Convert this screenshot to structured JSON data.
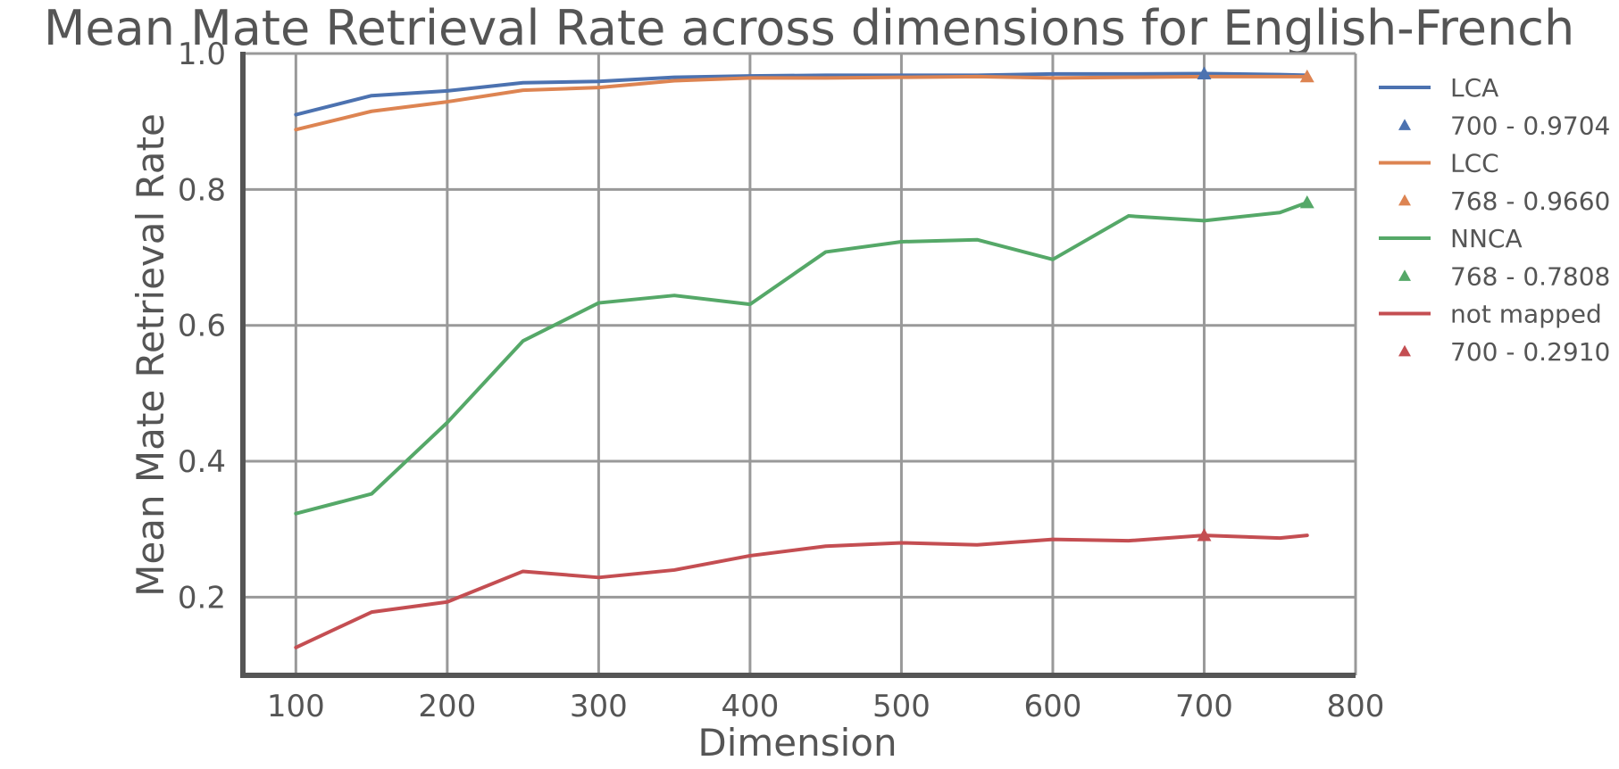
{
  "chart_data": {
    "type": "line",
    "title": "Mean Mate Retrieval Rate across dimensions for English-French",
    "xlabel": "Dimension",
    "ylabel": "Mean Mate Retrieval Rate",
    "xlim": [
      65,
      800
    ],
    "ylim": [
      0.085,
      1.0
    ],
    "xticks": [
      100,
      200,
      300,
      400,
      500,
      600,
      700,
      800
    ],
    "xtick_labels": [
      "100",
      "200",
      "300",
      "400",
      "500",
      "600",
      "700",
      "800"
    ],
    "yticks": [
      0.2,
      0.4,
      0.6,
      0.8,
      1.0
    ],
    "ytick_labels": [
      "0.2",
      "0.4",
      "0.6",
      "0.8",
      "1.0"
    ],
    "grid": true,
    "legend_position": "right",
    "x": [
      100,
      150,
      200,
      250,
      300,
      350,
      400,
      450,
      500,
      550,
      600,
      650,
      700,
      750,
      768
    ],
    "series": [
      {
        "name": "LCA",
        "color": "#4c72b0",
        "values": [
          0.91,
          0.938,
          0.945,
          0.957,
          0.959,
          0.965,
          0.967,
          0.968,
          0.968,
          0.968,
          0.97,
          0.97,
          0.9704,
          0.969,
          0.968
        ],
        "marker": {
          "x": 700,
          "y": 0.9704,
          "label": "700 - 0.9704"
        }
      },
      {
        "name": "LCC",
        "color": "#dd8452",
        "values": [
          0.888,
          0.915,
          0.929,
          0.946,
          0.95,
          0.96,
          0.964,
          0.964,
          0.965,
          0.966,
          0.964,
          0.965,
          0.966,
          0.966,
          0.966
        ],
        "marker": {
          "x": 768,
          "y": 0.966,
          "label": "768 - 0.9660"
        }
      },
      {
        "name": "NNCA",
        "color": "#55a868",
        "values": [
          0.323,
          0.352,
          0.457,
          0.577,
          0.633,
          0.644,
          0.631,
          0.708,
          0.723,
          0.726,
          0.697,
          0.761,
          0.754,
          0.766,
          0.7808
        ],
        "marker": {
          "x": 768,
          "y": 0.7808,
          "label": "768 - 0.7808"
        }
      },
      {
        "name": "not mapped",
        "color": "#c44e52",
        "values": [
          0.126,
          0.178,
          0.193,
          0.238,
          0.229,
          0.24,
          0.261,
          0.275,
          0.28,
          0.277,
          0.285,
          0.283,
          0.291,
          0.287,
          0.291
        ],
        "marker": {
          "x": 700,
          "y": 0.291,
          "label": "700 - 0.2910"
        }
      }
    ]
  }
}
